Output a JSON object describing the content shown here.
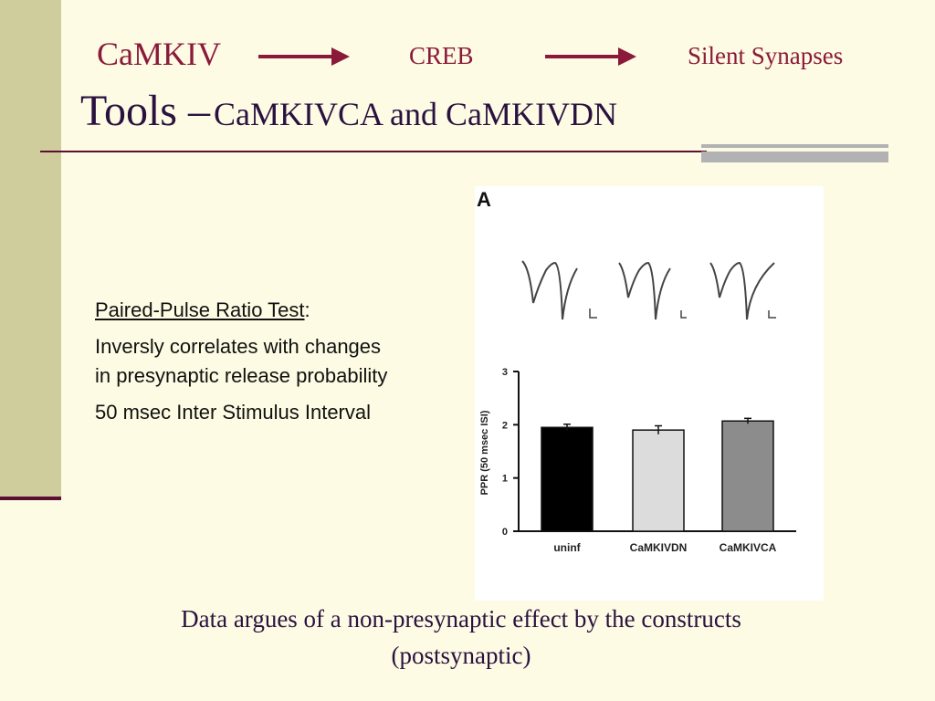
{
  "flow": {
    "items": [
      "CaMKIV",
      "CREB",
      "Silent Synapses"
    ]
  },
  "title": {
    "main": "Tools –",
    "sub": "CaMKIVCA and CaMKIVDN"
  },
  "body": {
    "heading": "Paired-Pulse Ratio Test",
    "heading_suffix": ":",
    "line1": "Inversly correlates with changes in presynaptic release probability",
    "line2": "50 msec Inter Stimulus Interval"
  },
  "figure": {
    "panel_label": "A"
  },
  "chart_data": {
    "type": "bar",
    "categories": [
      "uninf",
      "CaMKIVDN",
      "CaMKIVCA"
    ],
    "values": [
      1.95,
      1.9,
      2.07
    ],
    "errors": [
      0.06,
      0.08,
      0.05
    ],
    "bar_colors": [
      "#000000",
      "#dcdcdc",
      "#8c8c8c"
    ],
    "ylabel": "PPR (50 msec ISI)",
    "xlabel": "",
    "ylim": [
      0,
      3
    ],
    "yticks": [
      "0",
      "1",
      "2",
      "3"
    ],
    "grid": false
  },
  "caption": {
    "text": "Data argues of a non-presynaptic effect by the constructs (postsynaptic)"
  },
  "colors": {
    "background": "#fdfbe3",
    "left_bar": "#cfcd9c",
    "accent": "#8b1a3a",
    "title": "#2a1240",
    "rule": "#5a1033",
    "grey_rule": "#b2b2b4"
  }
}
